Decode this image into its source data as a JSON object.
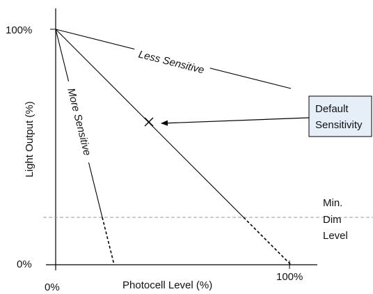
{
  "axes": {
    "x_title": "Photocell Level (%)",
    "y_title": "Light Output (%)",
    "x_tick_min": "0%",
    "x_tick_max": "100%",
    "y_tick_min": "0%",
    "y_tick_max": "100%"
  },
  "curves": {
    "less_sensitive": "Less Sensitive",
    "more_sensitive": "More Sensitive"
  },
  "callout": {
    "line1": "Default",
    "line2": "Sensitivity",
    "box_fill": "#e6eef8"
  },
  "min_dim": {
    "line1": "Min.",
    "line2": "Dim",
    "line3": "Level",
    "line_color": "#999999"
  }
}
